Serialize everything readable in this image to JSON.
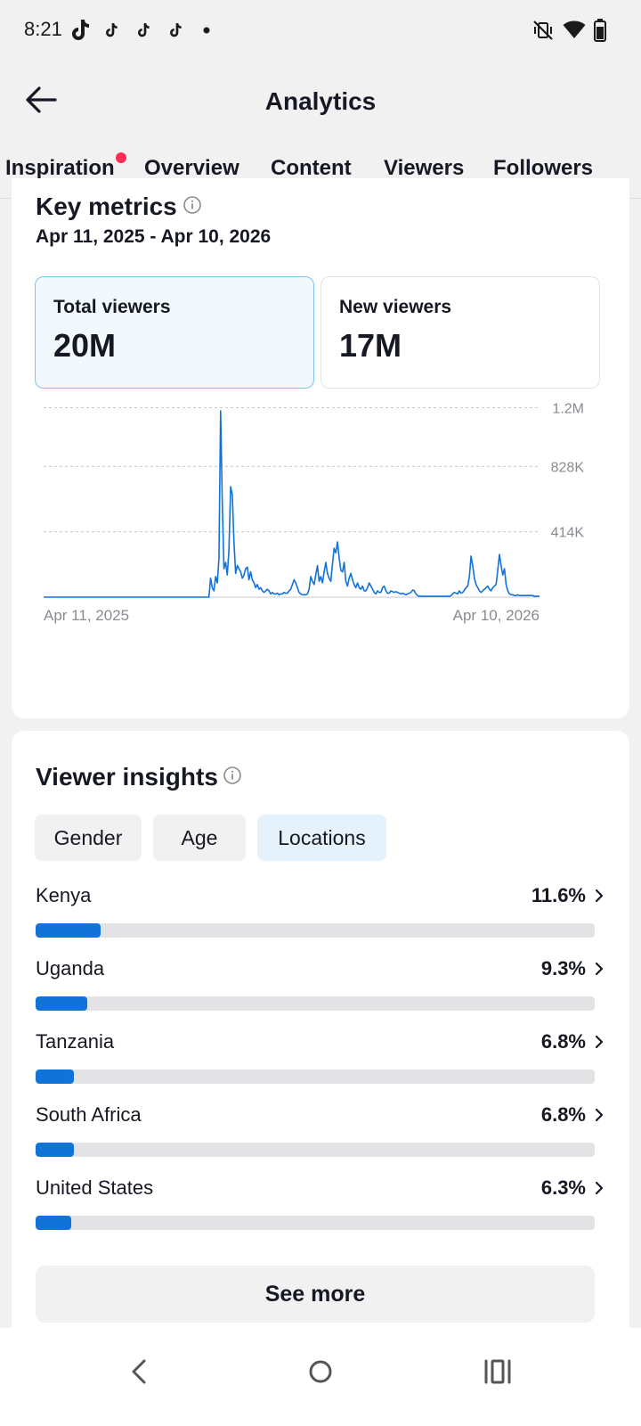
{
  "status_bar": {
    "time": "8:21",
    "notification_icons": [
      "tiktok-icon",
      "tiktok-icon",
      "tiktok-icon",
      "tiktok-icon",
      "dot-icon"
    ],
    "system_icons": [
      "mute-vibrate-icon",
      "wifi-icon",
      "battery-icon"
    ]
  },
  "header": {
    "title": "Analytics",
    "back_icon": "arrow-left-icon"
  },
  "tabs": [
    {
      "label": "Inspiration",
      "has_badge": true
    },
    {
      "label": "Overview"
    },
    {
      "label": "Content"
    },
    {
      "label": "Viewers",
      "selected": true
    },
    {
      "label": "Followers"
    }
  ],
  "key_metrics": {
    "title": "Key metrics",
    "date_range": "Apr 11, 2025 - Apr 10, 2026",
    "cards": [
      {
        "label": "Total viewers",
        "value": "20M",
        "selected": true
      },
      {
        "label": "New viewers",
        "value": "17M"
      }
    ]
  },
  "chart_data": {
    "type": "line",
    "series": [
      {
        "color": "#1172d8",
        "values": [
          0,
          0,
          0,
          0,
          0,
          0,
          0,
          0,
          0,
          0,
          0,
          0,
          0,
          0,
          0,
          0,
          0,
          0,
          0,
          0,
          0,
          0,
          0,
          0,
          0,
          0,
          0,
          0,
          0,
          0,
          0,
          0,
          0,
          0,
          0,
          0,
          0,
          0,
          0,
          0,
          0,
          0,
          0,
          0,
          0,
          0,
          0,
          0,
          0,
          0,
          0,
          0,
          0,
          0,
          0,
          0,
          0,
          0,
          0,
          0,
          0,
          0,
          0,
          0,
          0,
          0,
          0,
          0,
          0,
          0,
          0,
          0,
          0,
          0,
          0,
          0,
          0,
          0,
          0,
          0,
          0,
          0,
          0,
          0,
          0,
          0,
          0,
          0,
          0,
          0,
          0,
          0,
          0,
          0,
          0,
          0,
          0,
          0,
          0,
          0,
          120000,
          60000,
          40000,
          130000,
          90000,
          240000,
          1180000,
          600000,
          180000,
          220000,
          140000,
          300000,
          700000,
          650000,
          350000,
          150000,
          200000,
          180000,
          160000,
          120000,
          140000,
          180000,
          190000,
          110000,
          160000,
          110000,
          90000,
          60000,
          80000,
          50000,
          60000,
          40000,
          30000,
          40000,
          50000,
          40000,
          20000,
          30000,
          20000,
          20000,
          25000,
          15000,
          20000,
          20000,
          30000,
          25000,
          25000,
          40000,
          50000,
          80000,
          110000,
          90000,
          60000,
          30000,
          20000,
          15000,
          15000,
          15000,
          20000,
          50000,
          130000,
          100000,
          80000,
          140000,
          200000,
          100000,
          130000,
          90000,
          160000,
          220000,
          150000,
          120000,
          100000,
          210000,
          310000,
          280000,
          350000,
          250000,
          170000,
          160000,
          220000,
          100000,
          70000,
          120000,
          150000,
          110000,
          80000,
          60000,
          90000,
          60000,
          50000,
          70000,
          40000,
          40000,
          60000,
          90000,
          70000,
          50000,
          30000,
          20000,
          40000,
          30000,
          30000,
          60000,
          70000,
          40000,
          25000,
          25000,
          40000,
          35000,
          30000,
          35000,
          30000,
          25000,
          20000,
          25000,
          20000,
          15000,
          20000,
          25000,
          30000,
          45000,
          40000,
          20000,
          10000,
          5000,
          5000,
          5000,
          5000,
          5000,
          5000,
          5000,
          5000,
          5000,
          5000,
          5000,
          5000,
          5000,
          5000,
          5000,
          5000,
          5000,
          5000,
          5000,
          10000,
          20000,
          30000,
          25000,
          20000,
          40000,
          25000,
          30000,
          45000,
          60000,
          70000,
          130000,
          260000,
          200000,
          120000,
          80000,
          60000,
          40000,
          30000,
          40000,
          50000,
          60000,
          70000,
          50000,
          40000,
          60000,
          70000,
          80000,
          170000,
          270000,
          200000,
          140000,
          180000,
          80000,
          40000,
          20000,
          15000,
          15000,
          10000,
          10000,
          15000,
          10000,
          10000,
          10000,
          10000,
          10000,
          10000,
          10000,
          10000,
          10000,
          5000,
          5000,
          5000,
          5000
        ]
      }
    ],
    "x_start_label": "Apr 11, 2025",
    "x_end_label": "Apr 10, 2026",
    "y_ticks": [
      {
        "value": 414000,
        "label": "414K"
      },
      {
        "value": 828000,
        "label": "828K"
      },
      {
        "value": 1200000,
        "label": "1.2M"
      }
    ],
    "ylim": [
      0,
      1242000
    ],
    "grid": true,
    "gridline_style": "dashed"
  },
  "viewer_insights": {
    "title": "Viewer insights",
    "chips": [
      {
        "label": "Gender"
      },
      {
        "label": "Age"
      },
      {
        "label": "Locations",
        "selected": true
      }
    ],
    "locations": [
      {
        "name": "Kenya",
        "percent_label": "11.6%",
        "percent": 11.6
      },
      {
        "name": "Uganda",
        "percent_label": "9.3%",
        "percent": 9.3
      },
      {
        "name": "Tanzania",
        "percent_label": "6.8%",
        "percent": 6.8
      },
      {
        "name": "South Africa",
        "percent_label": "6.8%",
        "percent": 6.8
      },
      {
        "name": "United States",
        "percent_label": "6.3%",
        "percent": 6.3
      }
    ],
    "see_more_label": "See more"
  },
  "nav_bar": [
    "nav-back-icon",
    "nav-home-icon",
    "nav-recents-icon"
  ],
  "colors": {
    "accent": "#1172d8",
    "badge": "#fe2c55",
    "selected_card_bg": "#f2f9fd",
    "selected_chip_bg": "#e6f2fb"
  }
}
